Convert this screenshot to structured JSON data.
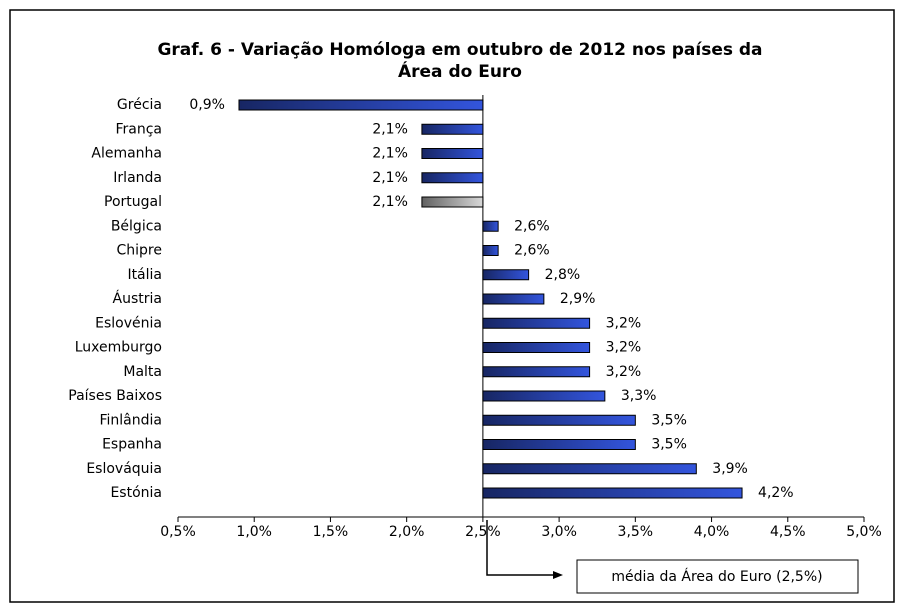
{
  "chart_data": {
    "type": "bar",
    "orientation": "horizontal",
    "title": [
      "Graf. 6 - Variação Homóloga em outubro de 2012 nos países da",
      "Área do Euro"
    ],
    "categories": [
      "Grécia",
      "França",
      "Alemanha",
      "Irlanda",
      "Portugal",
      "Bélgica",
      "Chipre",
      "Itália",
      "Áustria",
      "Eslovénia",
      "Luxemburgo",
      "Malta",
      "Países Baixos",
      "Finlândia",
      "Espanha",
      "Eslováquia",
      "Estónia"
    ],
    "values": [
      0.9,
      2.1,
      2.1,
      2.1,
      2.1,
      2.6,
      2.6,
      2.8,
      2.9,
      3.2,
      3.2,
      3.2,
      3.3,
      3.5,
      3.5,
      3.9,
      4.2
    ],
    "value_labels": [
      "0,9%",
      "2,1%",
      "2,1%",
      "2,1%",
      "2,1%",
      "2,6%",
      "2,6%",
      "2,8%",
      "2,9%",
      "3,2%",
      "3,2%",
      "3,2%",
      "3,3%",
      "3,5%",
      "3,5%",
      "3,9%",
      "4,2%"
    ],
    "colors": [
      "#3355dd",
      "#3355dd",
      "#3355dd",
      "#3355dd",
      "#d8d8d8",
      "#3355dd",
      "#3355dd",
      "#3355dd",
      "#3355dd",
      "#3355dd",
      "#3355dd",
      "#3355dd",
      "#3355dd",
      "#3355dd",
      "#3355dd",
      "#3355dd",
      "#3355dd"
    ],
    "baseline": 2.5,
    "xlim": [
      0.5,
      5.0
    ],
    "xticks": [
      {
        "value": 0.5,
        "label": "0,5%"
      },
      {
        "value": 1.0,
        "label": "1,0%"
      },
      {
        "value": 1.5,
        "label": "1,5%"
      },
      {
        "value": 2.0,
        "label": "2,0%"
      },
      {
        "value": 2.5,
        "label": "2,5%"
      },
      {
        "value": 3.0,
        "label": "3,0%"
      },
      {
        "value": 3.5,
        "label": "3,5%"
      },
      {
        "value": 4.0,
        "label": "4,0%"
      },
      {
        "value": 4.5,
        "label": "4,5%"
      },
      {
        "value": 5.0,
        "label": "5,0%"
      }
    ],
    "annotation": "média da Área do Euro (2,5%)"
  }
}
